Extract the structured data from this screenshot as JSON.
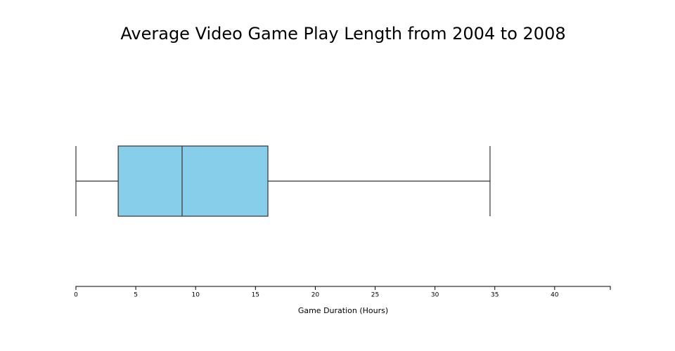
{
  "chart_data": {
    "type": "box",
    "title": "Average Video Game Play Length from 2004 to 2008",
    "x_label": "Game Duration (Hours)",
    "box": {
      "min": 0,
      "q1": 3.53,
      "median": 8.87,
      "q3": 16.04,
      "max": 34.6
    },
    "color": "#87ceeb",
    "xlim": [
      0,
      44.65
    ],
    "xticks": [
      0,
      5,
      10,
      15,
      20,
      25,
      30,
      35,
      40
    ]
  }
}
